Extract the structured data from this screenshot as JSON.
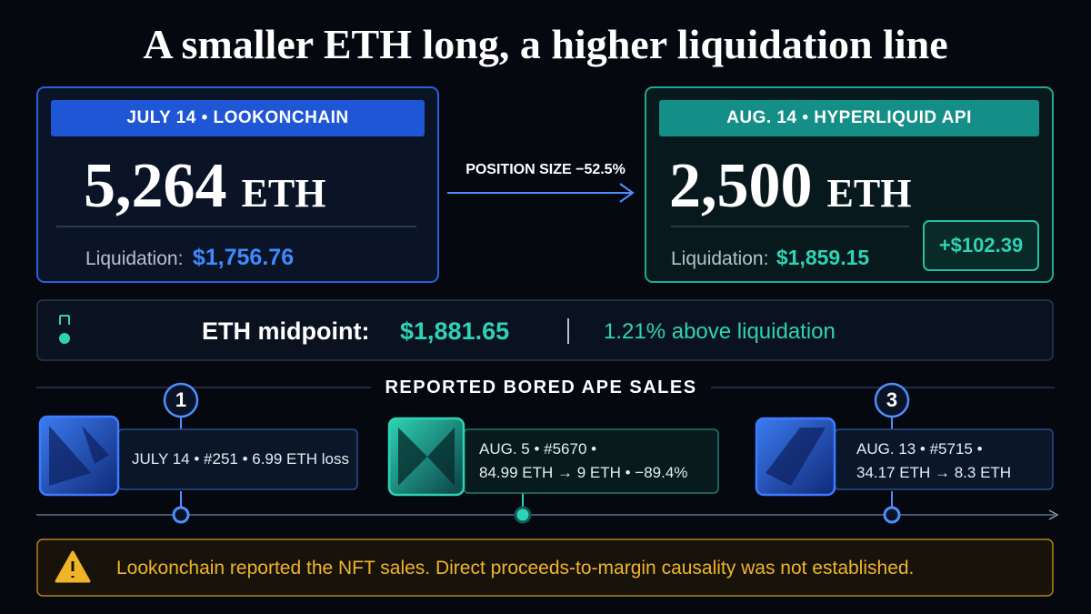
{
  "title": "A smaller ETH long, a higher liquidation line",
  "before": {
    "tag": "JULY 14 • LOOKONCHAIN",
    "amount": "5,264",
    "unit": "ETH",
    "liquidation_label": "Liquidation:",
    "liquidation_value": "$1,756.76"
  },
  "change": "POSITION SIZE −52.5%",
  "after": {
    "tag": "AUG. 14 • HYPERLIQUID API",
    "amount": "2,500",
    "unit": "ETH",
    "liquidation_label": "Liquidation:",
    "liquidation_value": "$1,859.15",
    "delta": "+$102.39"
  },
  "midpoint": {
    "label": "ETH midpoint:",
    "value": "$1,881.65",
    "note": "1.21% above liquidation"
  },
  "sales": {
    "title": "REPORTED BORED APE SALES",
    "items": [
      {
        "marker": "1",
        "lines": [
          "JULY 14 • #251 • 6.99 ETH loss"
        ]
      },
      {
        "lines": [
          "AUG. 5 • #5670 •",
          "84.99 ETH → 9 ETH • −89.4%"
        ]
      },
      {
        "marker": "3",
        "lines": [
          "AUG. 13 • #5715 •",
          "34.17 ETH → 8.3 ETH"
        ]
      }
    ]
  },
  "warning": "Lookonchain reported the NFT sales. Direct proceeds-to-margin causality was not established."
}
